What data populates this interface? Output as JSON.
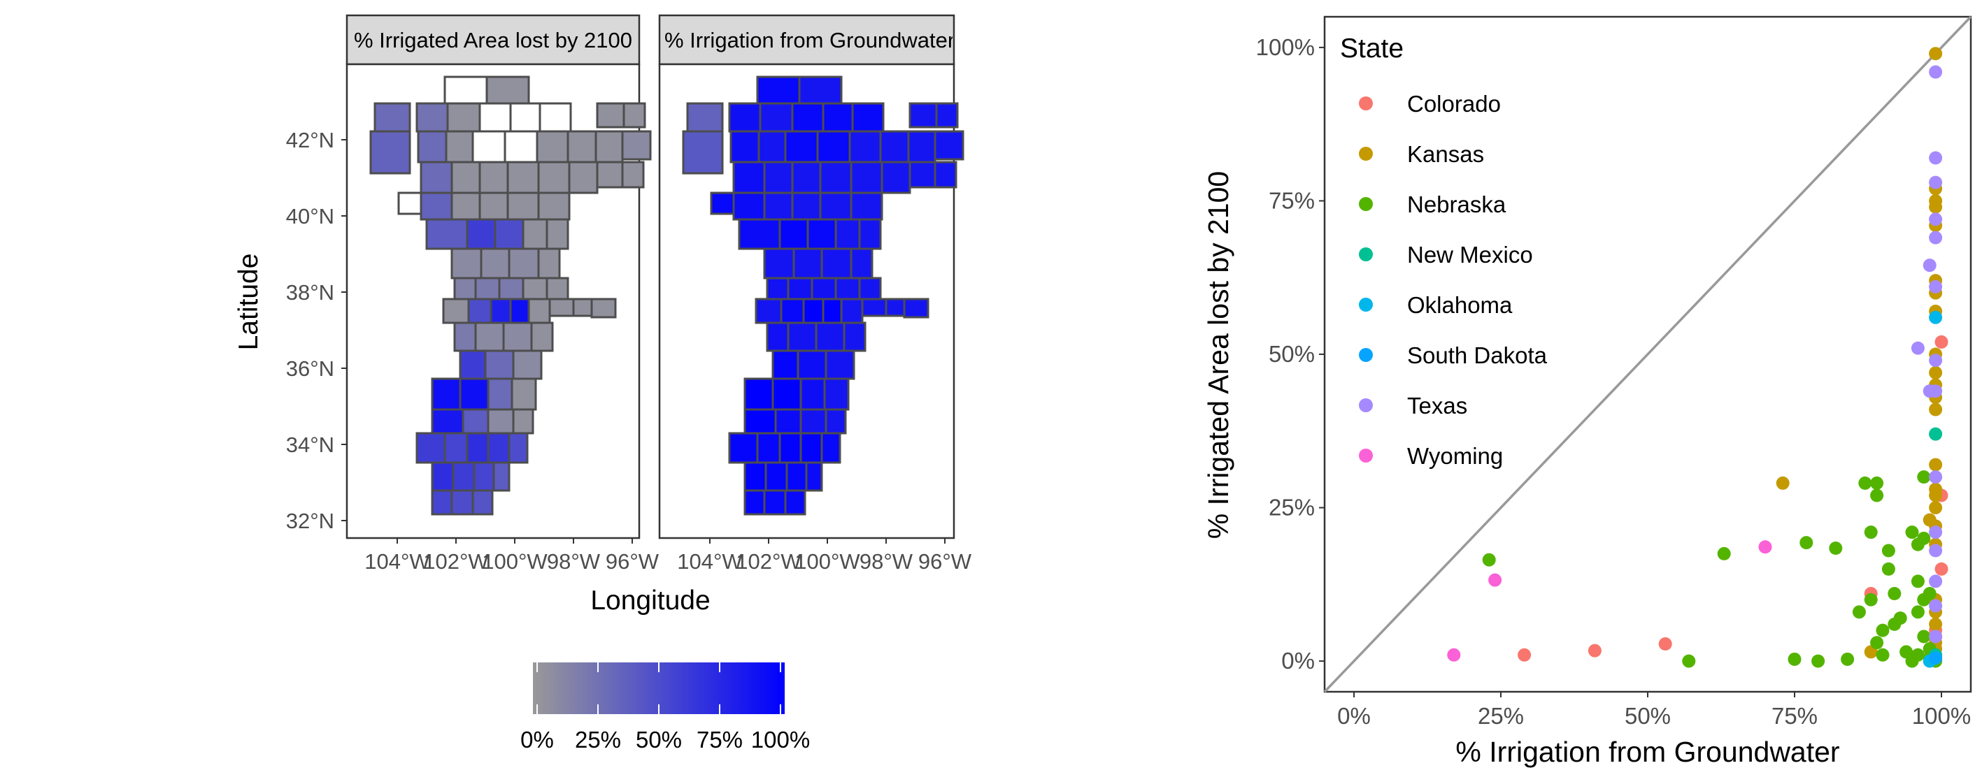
{
  "chart_data": [
    {
      "type": "map",
      "facets": [
        {
          "strip_label": "% Irrigated Area lost by 2100",
          "variable": "pct_area_lost"
        },
        {
          "strip_label": "% Irrigation from Groundwater",
          "variable": "pct_groundwater"
        }
      ],
      "xlabel": "Longitude",
      "ylabel": "Latitude",
      "x_ticks": [
        "104°W",
        "102°W",
        "100°W",
        "98°W",
        "96°W"
      ],
      "y_ticks": [
        "32°N",
        "34°N",
        "36°N",
        "38°N",
        "40°N",
        "42°N"
      ],
      "color_scale": {
        "low_color": "#999999",
        "high_color": "#0000FF",
        "breaks": [
          "0%",
          "25%",
          "50%",
          "75%",
          "100%"
        ],
        "legend_position": "bottom"
      },
      "region_fill_colors": {
        "no_data": "#FFFFFF",
        "border": "#4d4d4d"
      }
    },
    {
      "type": "scatter",
      "xlabel": "% Irrigation from Groundwater",
      "ylabel": "% Irrigated Area lost by 2100",
      "xlim": [
        -0.05,
        1.05
      ],
      "ylim": [
        -0.05,
        1.05
      ],
      "x_ticks": [
        "0%",
        "25%",
        "50%",
        "75%",
        "100%"
      ],
      "y_ticks": [
        "0%",
        "25%",
        "50%",
        "75%",
        "100%"
      ],
      "reference_line": "y = x",
      "grid": false,
      "legend_title": "State",
      "legend_position": "top-left",
      "series": [
        {
          "name": "Colorado",
          "color": "#F8766D",
          "points": [
            [
              0.29,
              0.01
            ],
            [
              0.41,
              0.017
            ],
            [
              0.53,
              0.028
            ],
            [
              0.88,
              0.11
            ],
            [
              1.0,
              0.52
            ],
            [
              1.0,
              0.27
            ],
            [
              1.0,
              0.15
            ],
            [
              0.99,
              0.05
            ],
            [
              0.99,
              0.01
            ]
          ]
        },
        {
          "name": "Kansas",
          "color": "#C49A00",
          "points": [
            [
              0.73,
              0.29
            ],
            [
              0.88,
              0.015
            ],
            [
              0.98,
              0.23
            ],
            [
              0.99,
              0.99
            ],
            [
              0.99,
              0.77
            ],
            [
              0.99,
              0.75
            ],
            [
              0.99,
              0.74
            ],
            [
              0.99,
              0.71
            ],
            [
              0.99,
              0.62
            ],
            [
              0.99,
              0.6
            ],
            [
              0.99,
              0.57
            ],
            [
              0.99,
              0.5
            ],
            [
              0.99,
              0.47
            ],
            [
              0.99,
              0.45
            ],
            [
              0.99,
              0.43
            ],
            [
              0.99,
              0.41
            ],
            [
              0.99,
              0.32
            ],
            [
              0.99,
              0.28
            ],
            [
              0.99,
              0.27
            ],
            [
              0.99,
              0.25
            ],
            [
              0.99,
              0.22
            ],
            [
              0.99,
              0.19
            ],
            [
              0.99,
              0.1
            ],
            [
              0.99,
              0.08
            ],
            [
              0.99,
              0.06
            ],
            [
              0.99,
              0.04
            ],
            [
              0.99,
              0.03
            ],
            [
              0.99,
              0.02
            ],
            [
              0.99,
              0.005
            ]
          ]
        },
        {
          "name": "Nebraska",
          "color": "#53B400",
          "points": [
            [
              0.23,
              0.165
            ],
            [
              0.57,
              0.0
            ],
            [
              0.63,
              0.175
            ],
            [
              0.75,
              0.003
            ],
            [
              0.77,
              0.193
            ],
            [
              0.79,
              0.0
            ],
            [
              0.82,
              0.184
            ],
            [
              0.84,
              0.003
            ],
            [
              0.86,
              0.08
            ],
            [
              0.87,
              0.29
            ],
            [
              0.88,
              0.21
            ],
            [
              0.88,
              0.1
            ],
            [
              0.89,
              0.29
            ],
            [
              0.89,
              0.27
            ],
            [
              0.89,
              0.03
            ],
            [
              0.9,
              0.01
            ],
            [
              0.9,
              0.05
            ],
            [
              0.91,
              0.18
            ],
            [
              0.91,
              0.15
            ],
            [
              0.92,
              0.11
            ],
            [
              0.92,
              0.06
            ],
            [
              0.93,
              0.07
            ],
            [
              0.94,
              0.015
            ],
            [
              0.95,
              0.0
            ],
            [
              0.95,
              0.21
            ],
            [
              0.96,
              0.19
            ],
            [
              0.96,
              0.13
            ],
            [
              0.96,
              0.08
            ],
            [
              0.96,
              0.01
            ],
            [
              0.97,
              0.2
            ],
            [
              0.97,
              0.3
            ],
            [
              0.97,
              0.1
            ],
            [
              0.97,
              0.04
            ],
            [
              0.98,
              0.11
            ],
            [
              0.98,
              0.02
            ],
            [
              0.98,
              0.005
            ],
            [
              0.99,
              0.0
            ]
          ]
        },
        {
          "name": "New Mexico",
          "color": "#00C094",
          "points": [
            [
              0.99,
              0.37
            ],
            [
              0.99,
              0.01
            ]
          ]
        },
        {
          "name": "Oklahoma",
          "color": "#00B6EB",
          "points": [
            [
              0.99,
              0.56
            ],
            [
              0.98,
              0.0
            ]
          ]
        },
        {
          "name": "South Dakota",
          "color": "#06A4FF",
          "points": [
            [
              0.99,
              0.005
            ]
          ]
        },
        {
          "name": "Texas",
          "color": "#A58AFF",
          "points": [
            [
              0.96,
              0.51
            ],
            [
              0.98,
              0.645
            ],
            [
              0.98,
              0.44
            ],
            [
              0.99,
              0.96
            ],
            [
              0.99,
              0.82
            ],
            [
              0.99,
              0.78
            ],
            [
              0.99,
              0.72
            ],
            [
              0.99,
              0.69
            ],
            [
              0.99,
              0.61
            ],
            [
              0.99,
              0.49
            ],
            [
              0.99,
              0.44
            ],
            [
              0.99,
              0.3
            ],
            [
              0.99,
              0.21
            ],
            [
              0.99,
              0.18
            ],
            [
              0.99,
              0.13
            ],
            [
              0.99,
              0.09
            ],
            [
              0.99,
              0.04
            ]
          ]
        },
        {
          "name": "Wyoming",
          "color": "#FB61D7",
          "points": [
            [
              0.17,
              0.01
            ],
            [
              0.24,
              0.132
            ],
            [
              0.7,
              0.186
            ]
          ]
        }
      ]
    }
  ]
}
